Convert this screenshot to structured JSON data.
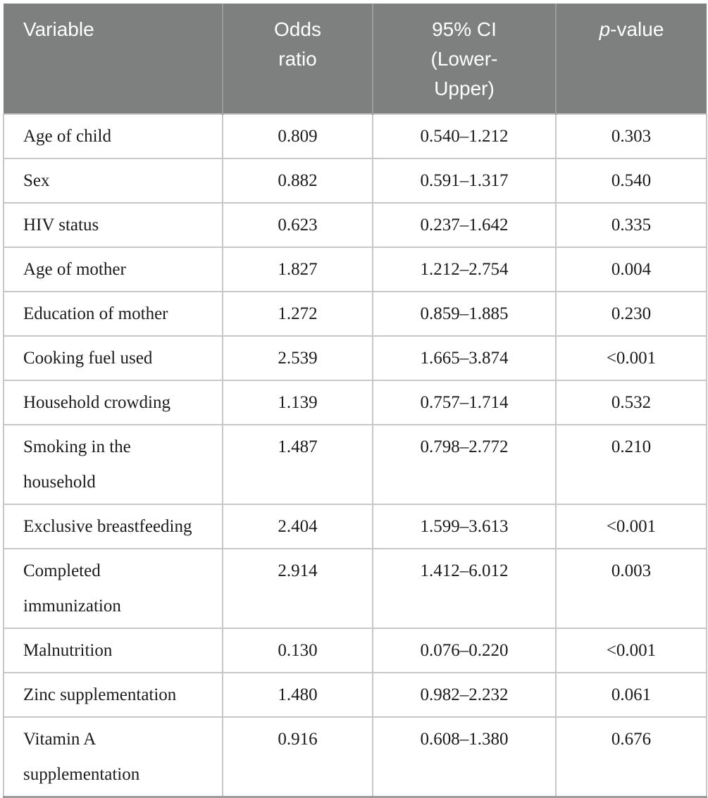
{
  "table": {
    "header": {
      "variable": "Variable",
      "odds_ratio": "Odds ratio",
      "ci": "95% CI (Lower-Upper)",
      "p_italic": "p",
      "p_rest": "-value"
    },
    "rows": [
      [
        "Age of child",
        "0.809",
        "0.540–1.212",
        "0.303"
      ],
      [
        "Sex",
        "0.882",
        "0.591–1.317",
        "0.540"
      ],
      [
        "HIV status",
        "0.623",
        "0.237–1.642",
        "0.335"
      ],
      [
        "Age of mother",
        "1.827",
        "1.212–2.754",
        "0.004"
      ],
      [
        "Education of mother",
        "1.272",
        "0.859–1.885",
        "0.230"
      ],
      [
        "Cooking fuel used",
        "2.539",
        "1.665–3.874",
        "<0.001"
      ],
      [
        "Household crowding",
        "1.139",
        "0.757–1.714",
        "0.532"
      ],
      [
        "Smoking in the\nhousehold",
        "1.487",
        "0.798–2.772",
        "0.210"
      ],
      [
        "Exclusive breastfeeding",
        "2.404",
        "1.599–3.613",
        "<0.001"
      ],
      [
        "Completed\nimmunization",
        "2.914",
        "1.412–6.012",
        "0.003"
      ],
      [
        "Malnutrition",
        "0.130",
        "0.076–0.220",
        "<0.001"
      ],
      [
        "Zinc supplementation",
        "1.480",
        "0.982–2.232",
        "0.061"
      ],
      [
        "Vitamin A\nsupplementation",
        "0.916",
        "0.608–1.380",
        "0.676"
      ]
    ],
    "colors": {
      "header_bg": "#7e8080",
      "header_text": "#ffffff",
      "header_divider": "#9b9b9b",
      "body_text": "#1b1b1b",
      "grid_line": "#c7c7c7",
      "bottom_border": "#9e9e9e"
    }
  }
}
